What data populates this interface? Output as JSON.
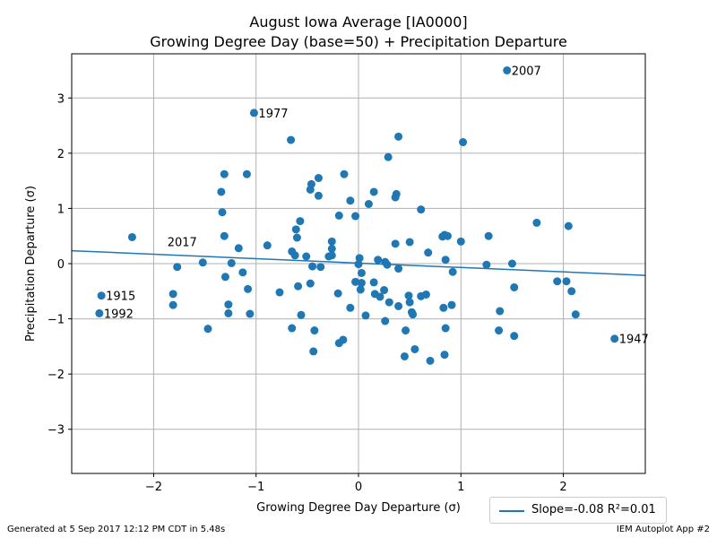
{
  "chart_data": {
    "type": "scatter",
    "title": "August Iowa Average [IA0000]",
    "subtitle": "Growing Degree Day (base=50) + Precipitation Departure",
    "xlabel": "Growing Degree Day Departure (σ)",
    "ylabel": "Precipitation Departure (σ)",
    "xlim": [
      -2.8,
      2.8
    ],
    "ylim": [
      -3.8,
      3.8
    ],
    "xticks": [
      -2,
      -1,
      0,
      1,
      2
    ],
    "yticks": [
      -3,
      -2,
      -1,
      0,
      1,
      2,
      3
    ],
    "grid": true,
    "point_color": "#1f77b4",
    "points": [
      [
        1.45,
        3.5
      ],
      [
        -1.02,
        2.73
      ],
      [
        -0.66,
        2.24
      ],
      [
        0.39,
        2.3
      ],
      [
        1.02,
        2.2
      ],
      [
        0.29,
        1.93
      ],
      [
        -1.31,
        1.62
      ],
      [
        -1.09,
        1.62
      ],
      [
        -0.39,
        1.55
      ],
      [
        -0.14,
        1.62
      ],
      [
        -0.46,
        1.44
      ],
      [
        -0.47,
        1.34
      ],
      [
        -1.34,
        1.3
      ],
      [
        -0.39,
        1.23
      ],
      [
        0.15,
        1.3
      ],
      [
        0.37,
        1.26
      ],
      [
        0.36,
        1.2
      ],
      [
        -0.08,
        1.14
      ],
      [
        0.1,
        1.08
      ],
      [
        -1.33,
        0.93
      ],
      [
        0.61,
        0.98
      ],
      [
        -0.19,
        0.87
      ],
      [
        -0.03,
        0.86
      ],
      [
        -0.57,
        0.77
      ],
      [
        1.74,
        0.74
      ],
      [
        2.05,
        0.68
      ],
      [
        -0.61,
        0.62
      ],
      [
        -2.21,
        0.48
      ],
      [
        -1.31,
        0.5
      ],
      [
        -0.6,
        0.47
      ],
      [
        0.82,
        0.49
      ],
      [
        0.84,
        0.52
      ],
      [
        0.87,
        0.5
      ],
      [
        1.27,
        0.5
      ],
      [
        -0.26,
        0.4
      ],
      [
        0.36,
        0.36
      ],
      [
        0.5,
        0.39
      ],
      [
        1.0,
        0.4
      ],
      [
        -0.89,
        0.33
      ],
      [
        -1.17,
        0.28
      ],
      [
        -0.26,
        0.27
      ],
      [
        -0.65,
        0.22
      ],
      [
        0.68,
        0.2
      ],
      [
        -0.62,
        0.15
      ],
      [
        -0.26,
        0.15
      ],
      [
        -0.51,
        0.13
      ],
      [
        -0.29,
        0.13
      ],
      [
        0.01,
        0.1
      ],
      [
        0.19,
        0.07
      ],
      [
        0.85,
        0.07
      ],
      [
        -1.52,
        0.02
      ],
      [
        -1.24,
        0.01
      ],
      [
        0.0,
        -0.01
      ],
      [
        0.26,
        0.03
      ],
      [
        0.28,
        -0.02
      ],
      [
        1.25,
        -0.02
      ],
      [
        1.5,
        0.0
      ],
      [
        -1.77,
        -0.06
      ],
      [
        -0.45,
        -0.05
      ],
      [
        -0.37,
        -0.06
      ],
      [
        0.39,
        -0.09
      ],
      [
        0.92,
        -0.15
      ],
      [
        0.03,
        -0.17
      ],
      [
        -1.13,
        -0.16
      ],
      [
        -1.3,
        -0.24
      ],
      [
        -0.03,
        -0.33
      ],
      [
        0.03,
        -0.35
      ],
      [
        0.15,
        -0.34
      ],
      [
        -0.47,
        -0.36
      ],
      [
        -0.59,
        -0.41
      ],
      [
        0.02,
        -0.47
      ],
      [
        -1.08,
        -0.46
      ],
      [
        1.52,
        -0.43
      ],
      [
        1.94,
        -0.32
      ],
      [
        2.03,
        -0.32
      ],
      [
        -2.51,
        -0.58
      ],
      [
        -1.81,
        -0.55
      ],
      [
        -0.77,
        -0.52
      ],
      [
        -0.2,
        -0.54
      ],
      [
        0.16,
        -0.55
      ],
      [
        0.21,
        -0.6
      ],
      [
        0.25,
        -0.48
      ],
      [
        0.49,
        -0.58
      ],
      [
        0.61,
        -0.59
      ],
      [
        0.66,
        -0.56
      ],
      [
        2.08,
        -0.5
      ],
      [
        -1.81,
        -0.75
      ],
      [
        -1.27,
        -0.74
      ],
      [
        0.3,
        -0.7
      ],
      [
        0.39,
        -0.77
      ],
      [
        0.5,
        -0.7
      ],
      [
        0.83,
        -0.8
      ],
      [
        0.91,
        -0.75
      ],
      [
        -0.08,
        -0.8
      ],
      [
        -2.53,
        -0.9
      ],
      [
        -1.27,
        -0.9
      ],
      [
        -1.06,
        -0.91
      ],
      [
        -0.56,
        -0.93
      ],
      [
        0.07,
        -0.94
      ],
      [
        0.52,
        -0.88
      ],
      [
        0.53,
        -0.92
      ],
      [
        1.38,
        -0.86
      ],
      [
        2.12,
        -0.92
      ],
      [
        0.26,
        -1.04
      ],
      [
        -1.47,
        -1.18
      ],
      [
        -0.65,
        -1.17
      ],
      [
        -0.43,
        -1.21
      ],
      [
        0.46,
        -1.21
      ],
      [
        0.85,
        -1.17
      ],
      [
        1.37,
        -1.21
      ],
      [
        1.52,
        -1.31
      ],
      [
        2.5,
        -1.36
      ],
      [
        -0.15,
        -1.38
      ],
      [
        -0.19,
        -1.44
      ],
      [
        -0.44,
        -1.59
      ],
      [
        0.55,
        -1.55
      ],
      [
        0.45,
        -1.68
      ],
      [
        0.7,
        -1.76
      ],
      [
        0.84,
        -1.65
      ]
    ],
    "annotations": [
      {
        "label": "2007",
        "x": 1.45,
        "y": 3.5
      },
      {
        "label": "1977",
        "x": -1.02,
        "y": 2.73
      },
      {
        "label": "2017",
        "x": -1.91,
        "y": 0.4
      },
      {
        "label": "1915",
        "x": -2.51,
        "y": -0.58
      },
      {
        "label": "1992",
        "x": -2.53,
        "y": -0.9
      },
      {
        "label": "1947",
        "x": 2.5,
        "y": -1.36
      }
    ],
    "fit_line": {
      "slope": -0.08,
      "intercept": 0.01,
      "color": "#1f77b4"
    },
    "legend": {
      "text": "Slope=-0.08 R²=0.01",
      "placement": "lower-right"
    }
  },
  "footer": {
    "left": "Generated at 5 Sep 2017 12:12 PM CDT in 5.48s",
    "right": "IEM Autoplot App #2"
  }
}
